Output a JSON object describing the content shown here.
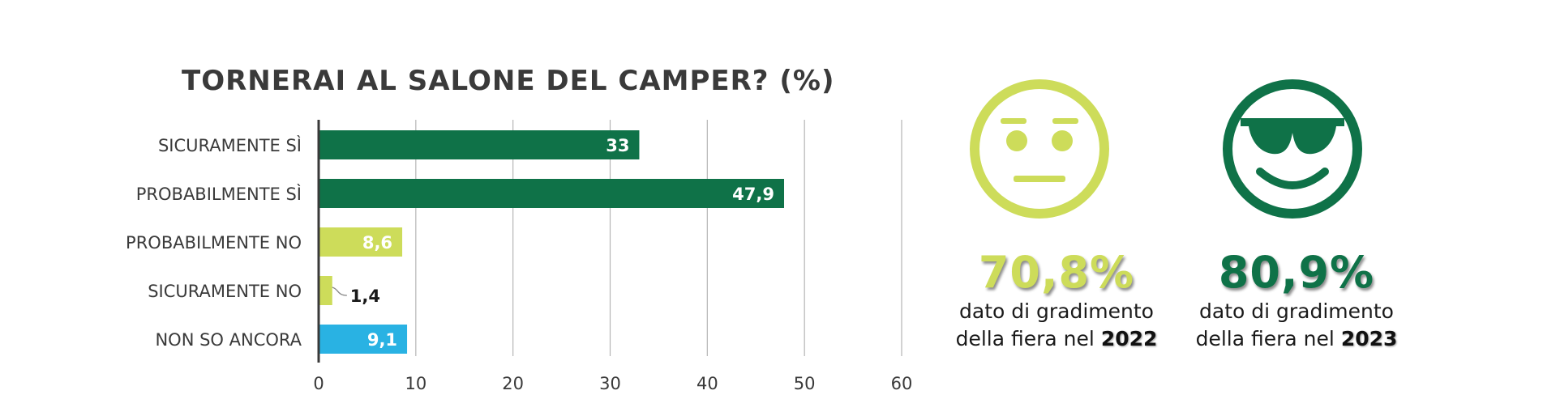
{
  "chart_data": {
    "type": "bar",
    "orientation": "horizontal",
    "title": "TORNERAI AL SALONE DEL CAMPER? (%)",
    "categories": [
      "SICURAMENTE SÌ",
      "PROBABILMENTE SÌ",
      "PROBABILMENTE NO",
      "SICURAMENTE NO",
      "NON SO ANCORA"
    ],
    "values": [
      33,
      47.9,
      8.6,
      1.4,
      9.1
    ],
    "value_labels": [
      "33",
      "47,9",
      "8,6",
      "1,4",
      "9,1"
    ],
    "colors": [
      "#0f7248",
      "#0f7248",
      "#cddc5a",
      "#cddc5a",
      "#29b2e3"
    ],
    "xlim": [
      0,
      60
    ],
    "ticks": [
      0,
      10,
      20,
      30,
      40,
      50,
      60
    ],
    "tick_labels": [
      "0",
      "10",
      "20",
      "30",
      "40",
      "50",
      "60"
    ],
    "grid": true
  },
  "stats": [
    {
      "icon": "neutral-face-icon",
      "color": "#cddc5a",
      "percent": "70,8%",
      "line1": "dato di gradimento",
      "line2_prefix": "della fiera nel",
      "year": "2022"
    },
    {
      "icon": "sunglasses-face-icon",
      "color": "#0f7248",
      "percent": "80,9%",
      "line1": "dato di gradimento",
      "line2_prefix": "della fiera nel",
      "year": "2023"
    }
  ]
}
